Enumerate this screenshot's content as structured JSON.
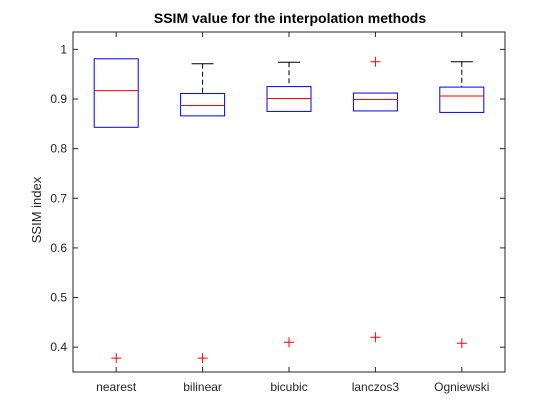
{
  "chart_data": {
    "type": "box",
    "title": "SSIM value for the interpolation methods",
    "xlabel": "",
    "ylabel": "SSIM index",
    "ylim": [
      0.35,
      1.035
    ],
    "yticks": [
      "0.4",
      "0.5",
      "0.6",
      "0.7",
      "0.8",
      "0.9",
      "1"
    ],
    "yticks_values": [
      0.4,
      0.5,
      0.6,
      0.7,
      0.8,
      0.9,
      1.0
    ],
    "grid": false,
    "categories": [
      "nearest",
      "bilinear",
      "bicubic",
      "lanczos3",
      "Ogniewski"
    ],
    "boxes": [
      {
        "category": "nearest",
        "whisker_low": 0.843,
        "q1": 0.843,
        "median": 0.917,
        "q3": 0.981,
        "whisker_high": 0.981,
        "outliers": [
          0.378
        ]
      },
      {
        "category": "bilinear",
        "whisker_low": 0.866,
        "q1": 0.866,
        "median": 0.887,
        "q3": 0.911,
        "whisker_high": 0.971,
        "outliers": [
          0.378
        ]
      },
      {
        "category": "bicubic",
        "whisker_low": 0.875,
        "q1": 0.875,
        "median": 0.901,
        "q3": 0.925,
        "whisker_high": 0.974,
        "outliers": [
          0.41
        ]
      },
      {
        "category": "lanczos3",
        "whisker_low": 0.876,
        "q1": 0.876,
        "median": 0.899,
        "q3": 0.912,
        "whisker_high": 0.912,
        "outliers": [
          0.975,
          0.42
        ]
      },
      {
        "category": "Ogniewski",
        "whisker_low": 0.873,
        "q1": 0.873,
        "median": 0.906,
        "q3": 0.924,
        "whisker_high": 0.975,
        "outliers": [
          0.408
        ]
      }
    ],
    "colors": {
      "box": "#0000ff",
      "median": "#ff0000",
      "whisker": "#000000",
      "outlier": "#ff0000",
      "axis": "#262626"
    }
  }
}
